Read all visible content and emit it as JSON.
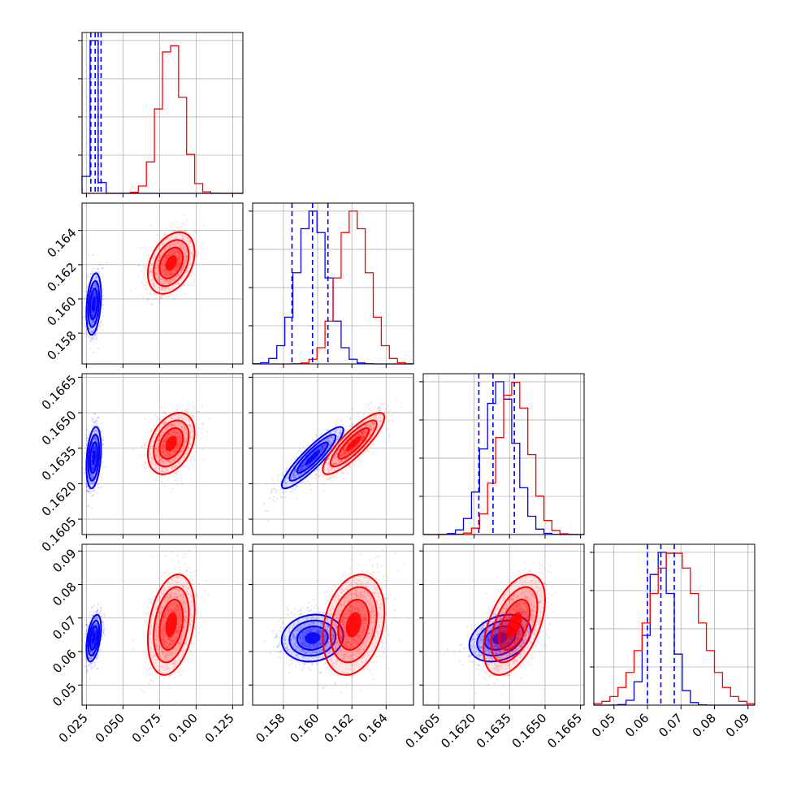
{
  "chart_data": {
    "type": "corner",
    "parameters": 4,
    "series": [
      {
        "color": "#0000ff",
        "means": [
          0.03,
          0.1597,
          0.1631,
          0.064
        ],
        "stds": [
          0.0025,
          0.0009,
          0.00065,
          0.0035
        ],
        "corr": [
          [
            1,
            0.3,
            0.3,
            0.45
          ],
          [
            0.3,
            1,
            0.9,
            0.1
          ],
          [
            0.3,
            0.9,
            1,
            0.3
          ],
          [
            0.45,
            0.1,
            0.3,
            1
          ]
        ]
      },
      {
        "color": "#ff0000",
        "means": [
          0.083,
          0.1621,
          0.1637,
          0.068
        ],
        "stds": [
          0.008,
          0.0009,
          0.00065,
          0.0075
        ],
        "corr": [
          [
            1,
            0.35,
            0.35,
            0.3
          ],
          [
            0.35,
            1,
            0.85,
            0.25
          ],
          [
            0.35,
            0.85,
            1,
            0.5
          ],
          [
            0.3,
            0.25,
            0.5,
            1
          ]
        ]
      }
    ],
    "quantile_lines": {
      "color": "#0000ff",
      "values": [
        [
          0.028,
          0.031,
          0.033,
          0.035
        ],
        [
          0.1585,
          0.1597,
          0.1606
        ],
        [
          0.1622,
          0.1628,
          0.1637
        ],
        [
          0.06,
          0.064,
          0.068
        ]
      ]
    },
    "ranges": [
      [
        0.022,
        0.132
      ],
      [
        0.1562,
        0.1656
      ],
      [
        0.15985,
        0.16665
      ],
      [
        0.044,
        0.092
      ]
    ],
    "ticks": [
      [
        0.025,
        0.05,
        0.075,
        0.1,
        0.125
      ],
      [
        0.158,
        0.16,
        0.162,
        0.164
      ],
      [
        0.1605,
        0.162,
        0.1635,
        0.165,
        0.1665
      ],
      [
        0.05,
        0.06,
        0.07,
        0.08,
        0.09
      ]
    ],
    "tick_labels_x": [
      [
        "0.025",
        "0.050",
        "0.075",
        "0.100",
        "0.125"
      ],
      [
        "0.158",
        "0.160",
        "0.162",
        "0.164"
      ],
      [
        "0.1605",
        "0.1620",
        "0.1635",
        "0.1650",
        "0.1665"
      ],
      [
        "0.05",
        "0.06",
        "0.07",
        "0.08",
        "0.09"
      ]
    ],
    "tick_labels_y": [
      [],
      [
        "0.158",
        "0.160",
        "0.162",
        "0.164"
      ],
      [
        "0.1605",
        "0.1620",
        "0.1635",
        "0.1650",
        "0.1665"
      ],
      [
        "0.05",
        "0.06",
        "0.07",
        "0.08",
        "0.09"
      ]
    ],
    "grid": true
  }
}
